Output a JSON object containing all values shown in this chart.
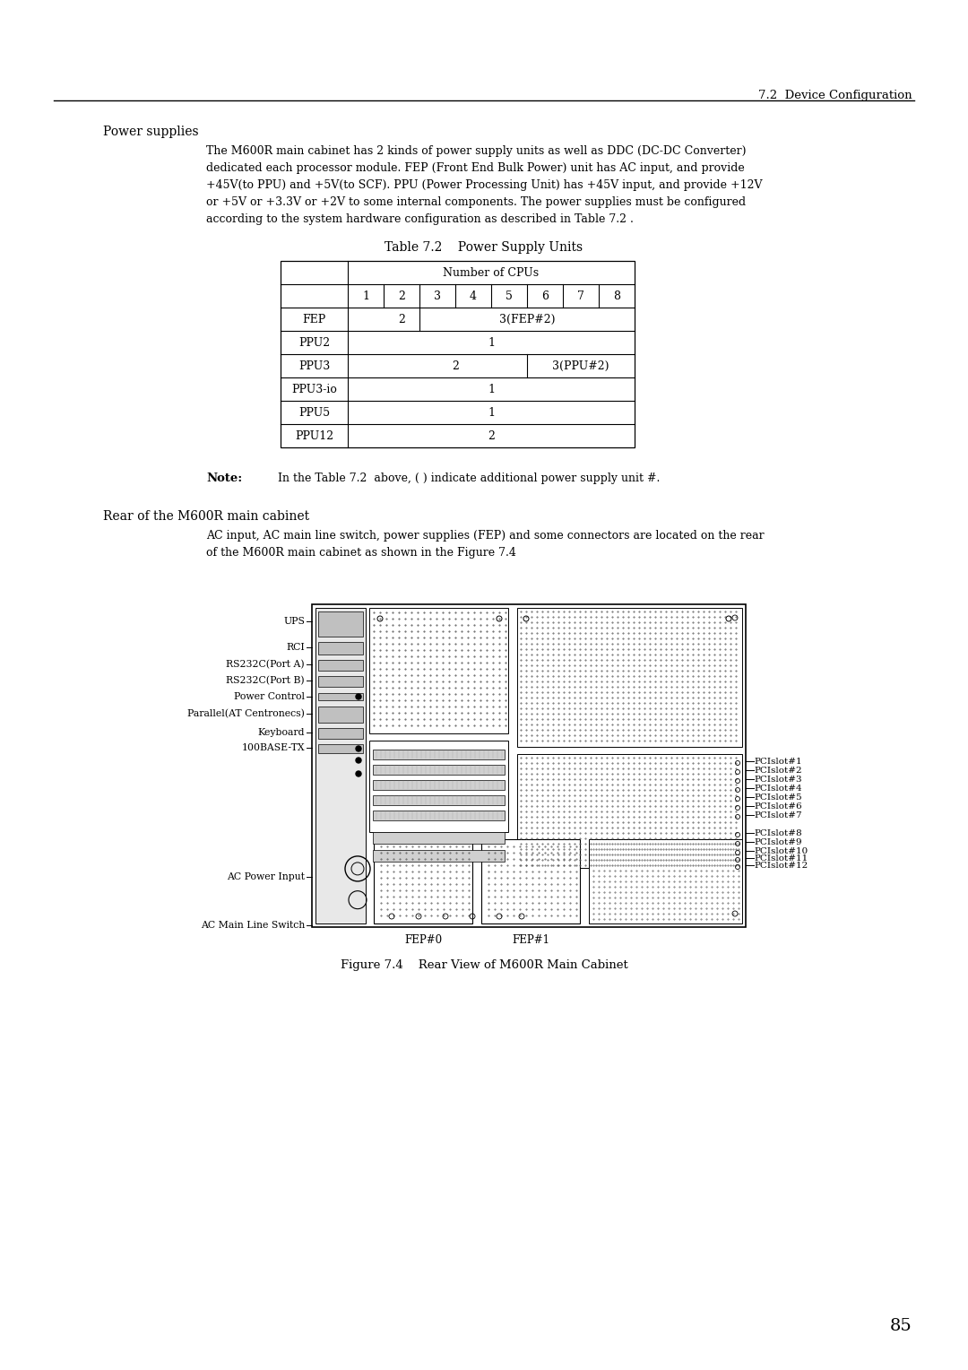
{
  "page_num": "85",
  "header_text": "7.2  Device Configuration",
  "section1_title": "Power supplies",
  "para1_lines": [
    "The M600R main cabinet has 2 kinds of power supply units as well as DDC (DC-DC Converter)",
    "dedicated each processor module. FEP (Front End Bulk Power) unit has AC input, and provide",
    "+45V(to PPU) and +5V(to SCF). PPU (Power Processing Unit) has +45V input, and provide +12V",
    "or +5V or +3.3V or +2V to some internal components. The power supplies must be configured",
    "according to the system hardware configuration as described in Table 7.2 ."
  ],
  "table_title": "Table 7.2    Power Supply Units",
  "table_header2": "Number of CPUs",
  "table_col_headers": [
    "1",
    "2",
    "3",
    "4",
    "5",
    "6",
    "7",
    "8"
  ],
  "note_label": "Note:",
  "note_text": "In the Table 7.2  above, ( ) indicate additional power supply unit #.",
  "section2_title": "Rear of the M600R main cabinet",
  "para2_lines": [
    "AC input, AC main line switch, power supplies (FEP) and some connectors are located on the rear",
    "of the M600R main cabinet as shown in the Figure 7.4"
  ],
  "figure_caption": "Figure 7.4    Rear View of M600R Main Cabinet",
  "bg_color": "#ffffff",
  "text_color": "#000000"
}
